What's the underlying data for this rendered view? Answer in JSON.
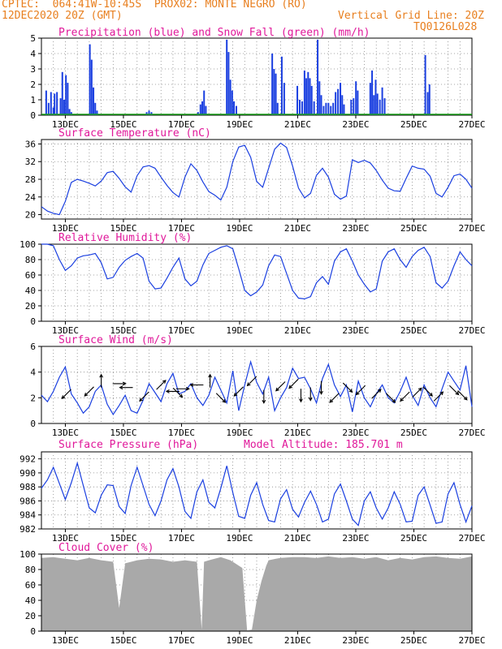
{
  "header": {
    "line1_left": "CPTEC:  064:41W-10:45S  PROX02: MONTE NEGRO (RO)",
    "line2_left": "12DEC2020 20Z (GMT)",
    "line2_right": "Vertical Grid Line: 20Z",
    "line3_right": "TQ0126L028"
  },
  "colors": {
    "header": "#e87f1f",
    "title": "#e0189a",
    "line": "#1a3fe0",
    "rain": "#1a3fe0",
    "snow": "#19a019",
    "cloud": "#a9a9a9",
    "arrow": "#000000",
    "grid": "#888888"
  },
  "chart_data": [
    {
      "id": "precip",
      "type": "bar",
      "title": "Precipitation (blue) and Snow Fall (green) (mm/h)",
      "ylim": [
        0,
        5
      ],
      "yticks": [
        "0",
        "1",
        "2",
        "3",
        "4",
        "5"
      ],
      "xticks": [
        "13DEC",
        "15DEC",
        "17DEC",
        "19DEC",
        "21DEC",
        "23DEC",
        "25DEC",
        "27DEC"
      ],
      "bars": [
        {
          "t": 0.4,
          "v": 1.6
        },
        {
          "t": 0.6,
          "v": 0.8
        },
        {
          "t": 0.8,
          "v": 1.5
        },
        {
          "t": 1.0,
          "v": 0.5
        },
        {
          "t": 1.1,
          "v": 1.4
        },
        {
          "t": 1.3,
          "v": 1.5
        },
        {
          "t": 1.6,
          "v": 1.1
        },
        {
          "t": 1.75,
          "v": 2.8
        },
        {
          "t": 1.9,
          "v": 1.0
        },
        {
          "t": 2.05,
          "v": 2.6
        },
        {
          "t": 2.2,
          "v": 2.1
        },
        {
          "t": 2.35,
          "v": 0.4
        },
        {
          "t": 2.5,
          "v": 0.2
        },
        {
          "t": 4.05,
          "v": 4.6
        },
        {
          "t": 4.2,
          "v": 3.6
        },
        {
          "t": 4.35,
          "v": 1.8
        },
        {
          "t": 4.5,
          "v": 0.8
        },
        {
          "t": 4.65,
          "v": 0.3
        },
        {
          "t": 8.8,
          "v": 0.2
        },
        {
          "t": 9.0,
          "v": 0.3
        },
        {
          "t": 9.2,
          "v": 0.2
        },
        {
          "t": 13.1,
          "v": 0.2
        },
        {
          "t": 13.3,
          "v": 0.7
        },
        {
          "t": 13.45,
          "v": 0.9
        },
        {
          "t": 13.6,
          "v": 1.6
        },
        {
          "t": 13.75,
          "v": 0.6
        },
        {
          "t": 15.5,
          "v": 4.9
        },
        {
          "t": 15.65,
          "v": 4.1
        },
        {
          "t": 15.8,
          "v": 2.3
        },
        {
          "t": 15.95,
          "v": 1.6
        },
        {
          "t": 16.1,
          "v": 0.9
        },
        {
          "t": 16.3,
          "v": 0.6
        },
        {
          "t": 19.3,
          "v": 4.0
        },
        {
          "t": 19.45,
          "v": 3.0
        },
        {
          "t": 19.6,
          "v": 2.7
        },
        {
          "t": 19.75,
          "v": 0.8
        },
        {
          "t": 20.1,
          "v": 3.8
        },
        {
          "t": 20.3,
          "v": 2.1
        },
        {
          "t": 21.4,
          "v": 1.9
        },
        {
          "t": 21.6,
          "v": 1.0
        },
        {
          "t": 21.8,
          "v": 0.9
        },
        {
          "t": 22.0,
          "v": 2.9
        },
        {
          "t": 22.15,
          "v": 2.4
        },
        {
          "t": 22.3,
          "v": 2.8
        },
        {
          "t": 22.45,
          "v": 2.4
        },
        {
          "t": 22.6,
          "v": 1.9
        },
        {
          "t": 22.8,
          "v": 0.9
        },
        {
          "t": 23.1,
          "v": 4.9
        },
        {
          "t": 23.25,
          "v": 2.2
        },
        {
          "t": 23.4,
          "v": 1.3
        },
        {
          "t": 23.6,
          "v": 0.6
        },
        {
          "t": 23.8,
          "v": 0.8
        },
        {
          "t": 24.0,
          "v": 0.8
        },
        {
          "t": 24.2,
          "v": 0.6
        },
        {
          "t": 24.4,
          "v": 0.8
        },
        {
          "t": 24.6,
          "v": 1.5
        },
        {
          "t": 24.8,
          "v": 1.7
        },
        {
          "t": 25.0,
          "v": 2.1
        },
        {
          "t": 25.15,
          "v": 1.3
        },
        {
          "t": 25.3,
          "v": 0.7
        },
        {
          "t": 25.9,
          "v": 1.0
        },
        {
          "t": 26.1,
          "v": 1.1
        },
        {
          "t": 26.3,
          "v": 2.2
        },
        {
          "t": 26.45,
          "v": 1.6
        },
        {
          "t": 27.5,
          "v": 2.1
        },
        {
          "t": 27.65,
          "v": 2.9
        },
        {
          "t": 27.8,
          "v": 1.3
        },
        {
          "t": 27.95,
          "v": 2.3
        },
        {
          "t": 28.1,
          "v": 1.4
        },
        {
          "t": 28.3,
          "v": 1.0
        },
        {
          "t": 28.5,
          "v": 1.8
        },
        {
          "t": 28.7,
          "v": 1.1
        },
        {
          "t": 32.1,
          "v": 3.9
        },
        {
          "t": 32.3,
          "v": 1.5
        },
        {
          "t": 32.45,
          "v": 2.0
        }
      ]
    },
    {
      "id": "temperature",
      "type": "line",
      "title": "Surface Temperature (nC)",
      "ylim": [
        19,
        37
      ],
      "yticks": [
        "20",
        "24",
        "28",
        "32",
        "36"
      ],
      "xticks": [
        "13DEC",
        "15DEC",
        "17DEC",
        "19DEC",
        "21DEC",
        "23DEC",
        "25DEC",
        "27DEC"
      ],
      "x": [
        0,
        0.5,
        1,
        1.5,
        2,
        2.5,
        3,
        3.5,
        4,
        4.5,
        5,
        5.5,
        6,
        6.5,
        7,
        7.5,
        8,
        8.5,
        9,
        9.5,
        10,
        10.5,
        11,
        11.5,
        12,
        12.5,
        13,
        13.5,
        14,
        14.5,
        15,
        15.5,
        16,
        16.5,
        17,
        17.5,
        18,
        18.5,
        19,
        19.5,
        20,
        20.5,
        21,
        21.5,
        22,
        22.5,
        23,
        23.5,
        24,
        24.5,
        25,
        25.5,
        26,
        26.5,
        27,
        27.5,
        28,
        28.5,
        29,
        29.5,
        30,
        30.5,
        31,
        31.5,
        32,
        32.5,
        33,
        33.5,
        34,
        34.5,
        35,
        35.5,
        36
      ],
      "values": [
        21.8,
        20.8,
        20.3,
        20.0,
        23.0,
        27.3,
        28.0,
        27.6,
        27.1,
        26.5,
        27.6,
        29.5,
        29.8,
        28.2,
        26.3,
        25.1,
        28.8,
        30.8,
        31.1,
        30.5,
        28.5,
        26.6,
        25.0,
        24.0,
        28.5,
        31.5,
        30.0,
        27.4,
        25.2,
        24.4,
        23.3,
        26.2,
        32.0,
        35.3,
        35.7,
        33.0,
        27.5,
        26.2,
        30.5,
        34.8,
        36.2,
        35.2,
        31.0,
        26.0,
        23.8,
        24.8,
        28.9,
        30.5,
        28.5,
        24.6,
        23.5,
        24.2,
        32.4,
        31.8,
        32.3,
        31.7,
        30.0,
        27.8,
        26.0,
        25.4,
        25.3,
        28.2,
        31.0,
        30.5,
        30.3,
        28.7,
        24.8,
        24.0,
        26.2,
        28.8,
        29.2,
        28.0,
        26.0
      ]
    },
    {
      "id": "humidity",
      "type": "line",
      "title": "Relative Humidity (%)",
      "ylim": [
        0,
        100
      ],
      "yticks": [
        "0",
        "20",
        "40",
        "60",
        "80",
        "100"
      ],
      "xticks": [
        "13DEC",
        "15DEC",
        "17DEC",
        "19DEC",
        "21DEC",
        "23DEC",
        "25DEC",
        "27DEC"
      ],
      "x": [
        0,
        0.5,
        1,
        1.5,
        2,
        2.5,
        3,
        3.5,
        4,
        4.5,
        5,
        5.5,
        6,
        6.5,
        7,
        7.5,
        8,
        8.5,
        9,
        9.5,
        10,
        10.5,
        11,
        11.5,
        12,
        12.5,
        13,
        13.5,
        14,
        14.5,
        15,
        15.5,
        16,
        16.5,
        17,
        17.5,
        18,
        18.5,
        19,
        19.5,
        20,
        20.5,
        21,
        21.5,
        22,
        22.5,
        23,
        23.5,
        24,
        24.5,
        25,
        25.5,
        26,
        26.5,
        27,
        27.5,
        28,
        28.5,
        29,
        29.5,
        30,
        30.5,
        31,
        31.5,
        32,
        32.5,
        33,
        33.5,
        34,
        34.5,
        35,
        35.5,
        36
      ],
      "values": [
        100,
        100,
        98,
        80,
        66,
        72,
        82,
        85,
        86,
        88,
        76,
        55,
        57,
        70,
        79,
        84,
        88,
        82,
        52,
        42,
        43,
        56,
        70,
        82,
        55,
        46,
        52,
        73,
        88,
        92,
        96,
        98,
        94,
        68,
        40,
        33,
        38,
        47,
        72,
        86,
        84,
        62,
        40,
        30,
        29,
        32,
        50,
        58,
        48,
        78,
        90,
        94,
        78,
        60,
        48,
        38,
        42,
        78,
        90,
        94,
        80,
        70,
        84,
        92,
        96,
        84,
        50,
        43,
        52,
        72,
        90,
        80,
        72
      ]
    },
    {
      "id": "wind",
      "type": "line",
      "title": "Surface Wind (m/s)",
      "ylim": [
        0,
        6
      ],
      "yticks": [
        "0",
        "2",
        "4",
        "6"
      ],
      "xticks": [
        "13DEC",
        "15DEC",
        "17DEC",
        "19DEC",
        "21DEC",
        "23DEC",
        "25DEC",
        "27DEC"
      ],
      "x": [
        0,
        0.5,
        1,
        1.5,
        2,
        2.5,
        3,
        3.5,
        4,
        4.5,
        5,
        5.5,
        6,
        6.5,
        7,
        7.5,
        8,
        8.5,
        9,
        9.5,
        10,
        10.5,
        11,
        11.5,
        12,
        12.5,
        13,
        13.5,
        14,
        14.5,
        15,
        15.5,
        16,
        16.5,
        17,
        17.5,
        18,
        18.5,
        19,
        19.5,
        20,
        20.5,
        21,
        21.5,
        22,
        22.5,
        23,
        23.5,
        24,
        24.5,
        25,
        25.5,
        26,
        26.5,
        27,
        27.5,
        28,
        28.5,
        29,
        29.5,
        30,
        30.5,
        31,
        31.5,
        32,
        32.5,
        33,
        33.5,
        34,
        34.5,
        35,
        35.5,
        36
      ],
      "values": [
        2.2,
        1.7,
        2.5,
        3.6,
        4.4,
        2.3,
        1.6,
        0.8,
        1.3,
        2.5,
        3.0,
        1.5,
        0.7,
        1.4,
        2.2,
        1.0,
        0.8,
        1.8,
        3.1,
        2.4,
        1.7,
        3.1,
        3.9,
        2.3,
        2.5,
        3.1,
        2.0,
        1.4,
        2.2,
        3.6,
        2.6,
        1.6,
        4.1,
        1.0,
        3.0,
        4.8,
        3.2,
        2.3,
        3.6,
        1.0,
        2.0,
        2.8,
        4.3,
        3.5,
        3.6,
        2.7,
        1.6,
        3.5,
        4.6,
        3.0,
        2.1,
        3.0,
        0.9,
        3.3,
        2.0,
        1.3,
        2.3,
        3.0,
        2.0,
        1.6,
        2.5,
        3.6,
        2.2,
        1.4,
        3.0,
        2.0,
        1.3,
        2.7,
        4.0,
        3.3,
        2.6,
        4.5,
        1.3
      ],
      "arrows": [
        {
          "t": 2.1,
          "v": 2.3,
          "dir": "sw"
        },
        {
          "t": 4.0,
          "v": 2.5,
          "dir": "sw"
        },
        {
          "t": 5.0,
          "v": 3.3,
          "dir": "n"
        },
        {
          "t": 6.5,
          "v": 3.1,
          "dir": "e"
        },
        {
          "t": 7.1,
          "v": 2.8,
          "dir": "w"
        },
        {
          "t": 8.6,
          "v": 2.1,
          "dir": "sw"
        },
        {
          "t": 10.0,
          "v": 3.0,
          "dir": "ne"
        },
        {
          "t": 11.0,
          "v": 2.5,
          "dir": "w"
        },
        {
          "t": 11.4,
          "v": 2.4,
          "dir": "se"
        },
        {
          "t": 11.8,
          "v": 2.7,
          "dir": "e"
        },
        {
          "t": 13.0,
          "v": 3.0,
          "dir": "w"
        },
        {
          "t": 14.1,
          "v": 3.3,
          "dir": "n"
        },
        {
          "t": 15.0,
          "v": 2.0,
          "dir": "se"
        },
        {
          "t": 16.5,
          "v": 2.5,
          "dir": "sw"
        },
        {
          "t": 17.6,
          "v": 3.3,
          "dir": "sw"
        },
        {
          "t": 18.6,
          "v": 2.1,
          "dir": "s"
        },
        {
          "t": 20.0,
          "v": 2.9,
          "dir": "sw"
        },
        {
          "t": 21.1,
          "v": 3.1,
          "dir": "sw"
        },
        {
          "t": 21.7,
          "v": 2.2,
          "dir": "s"
        },
        {
          "t": 22.5,
          "v": 2.3,
          "dir": "s"
        },
        {
          "t": 23.4,
          "v": 2.8,
          "dir": "s"
        },
        {
          "t": 24.5,
          "v": 2.0,
          "dir": "sw"
        },
        {
          "t": 25.6,
          "v": 2.8,
          "dir": "se"
        },
        {
          "t": 26.7,
          "v": 2.6,
          "dir": "sw"
        },
        {
          "t": 28.0,
          "v": 2.3,
          "dir": "ne"
        },
        {
          "t": 29.2,
          "v": 2.0,
          "dir": "se"
        },
        {
          "t": 30.4,
          "v": 2.1,
          "dir": "sw"
        },
        {
          "t": 31.4,
          "v": 2.4,
          "dir": "ne"
        },
        {
          "t": 32.3,
          "v": 2.5,
          "dir": "se"
        },
        {
          "t": 33.2,
          "v": 2.1,
          "dir": "ne"
        },
        {
          "t": 34.5,
          "v": 2.6,
          "dir": "se"
        },
        {
          "t": 35.2,
          "v": 2.2,
          "dir": "se"
        }
      ]
    },
    {
      "id": "pressure",
      "type": "line",
      "title": "Surface Pressure (hPa)",
      "subtitle": "Model Altitude: 185.701 m",
      "ylim": [
        982,
        993
      ],
      "yticks": [
        "982",
        "984",
        "986",
        "988",
        "990",
        "992"
      ],
      "xticks": [
        "13DEC",
        "15DEC",
        "17DEC",
        "19DEC",
        "21DEC",
        "23DEC",
        "25DEC",
        "27DEC"
      ],
      "x": [
        0,
        0.5,
        1,
        1.5,
        2,
        2.5,
        3,
        3.5,
        4,
        4.5,
        5,
        5.5,
        6,
        6.5,
        7,
        7.5,
        8,
        8.5,
        9,
        9.5,
        10,
        10.5,
        11,
        11.5,
        12,
        12.5,
        13,
        13.5,
        14,
        14.5,
        15,
        15.5,
        16,
        16.5,
        17,
        17.5,
        18,
        18.5,
        19,
        19.5,
        20,
        20.5,
        21,
        21.5,
        22,
        22.5,
        23,
        23.5,
        24,
        24.5,
        25,
        25.5,
        26,
        26.5,
        27,
        27.5,
        28,
        28.5,
        29,
        29.5,
        30,
        30.5,
        31,
        31.5,
        32,
        32.5,
        33,
        33.5,
        34,
        34.5,
        35,
        35.5,
        36
      ],
      "values": [
        987.8,
        989.0,
        990.8,
        988.5,
        986.2,
        988.6,
        991.4,
        988.2,
        985.0,
        984.3,
        986.8,
        988.3,
        988.2,
        985.2,
        984.2,
        988.2,
        990.8,
        988.2,
        985.5,
        983.9,
        986.0,
        989.0,
        990.6,
        988.0,
        984.5,
        983.5,
        987.3,
        989.0,
        985.8,
        985.0,
        987.8,
        991.0,
        987.2,
        983.8,
        983.5,
        986.8,
        988.6,
        985.5,
        983.2,
        983.0,
        986.3,
        987.6,
        984.8,
        983.7,
        985.8,
        987.4,
        985.5,
        983.0,
        983.4,
        987.0,
        988.4,
        986.0,
        983.4,
        982.5,
        986.0,
        987.3,
        985.0,
        983.4,
        985.0,
        987.3,
        985.5,
        983.0,
        983.1,
        986.8,
        988.0,
        985.4,
        982.8,
        983.0,
        987.0,
        988.6,
        985.5,
        983.0,
        985.3
      ]
    },
    {
      "id": "cloud",
      "type": "area",
      "title": "Cloud Cover (%)",
      "ylim": [
        0,
        100
      ],
      "yticks": [
        "0",
        "20",
        "40",
        "60",
        "80",
        "100"
      ],
      "xticks": [
        "13DEC",
        "15DEC",
        "17DEC",
        "19DEC",
        "21DEC",
        "23DEC",
        "25DEC",
        "27DEC"
      ],
      "x": [
        0,
        1,
        2,
        3,
        4,
        5,
        6,
        6.5,
        7,
        8,
        9,
        10,
        11,
        12,
        13,
        13.4,
        13.6,
        14,
        15,
        15.8,
        16.2,
        16.8,
        17.2,
        17.6,
        18,
        18.4,
        18.8,
        19,
        19.6,
        20,
        21,
        22,
        23,
        24,
        25,
        26,
        27,
        28,
        29,
        30,
        31,
        32,
        33,
        34,
        35,
        36
      ],
      "values": [
        95,
        96,
        94,
        92,
        95,
        92,
        90,
        30,
        88,
        92,
        94,
        93,
        90,
        92,
        90,
        2,
        90,
        92,
        96,
        92,
        88,
        82,
        1,
        2,
        40,
        65,
        85,
        92,
        94,
        95,
        96,
        96,
        95,
        97,
        95,
        96,
        94,
        96,
        92,
        95,
        93,
        96,
        97,
        95,
        94,
        97
      ]
    }
  ]
}
